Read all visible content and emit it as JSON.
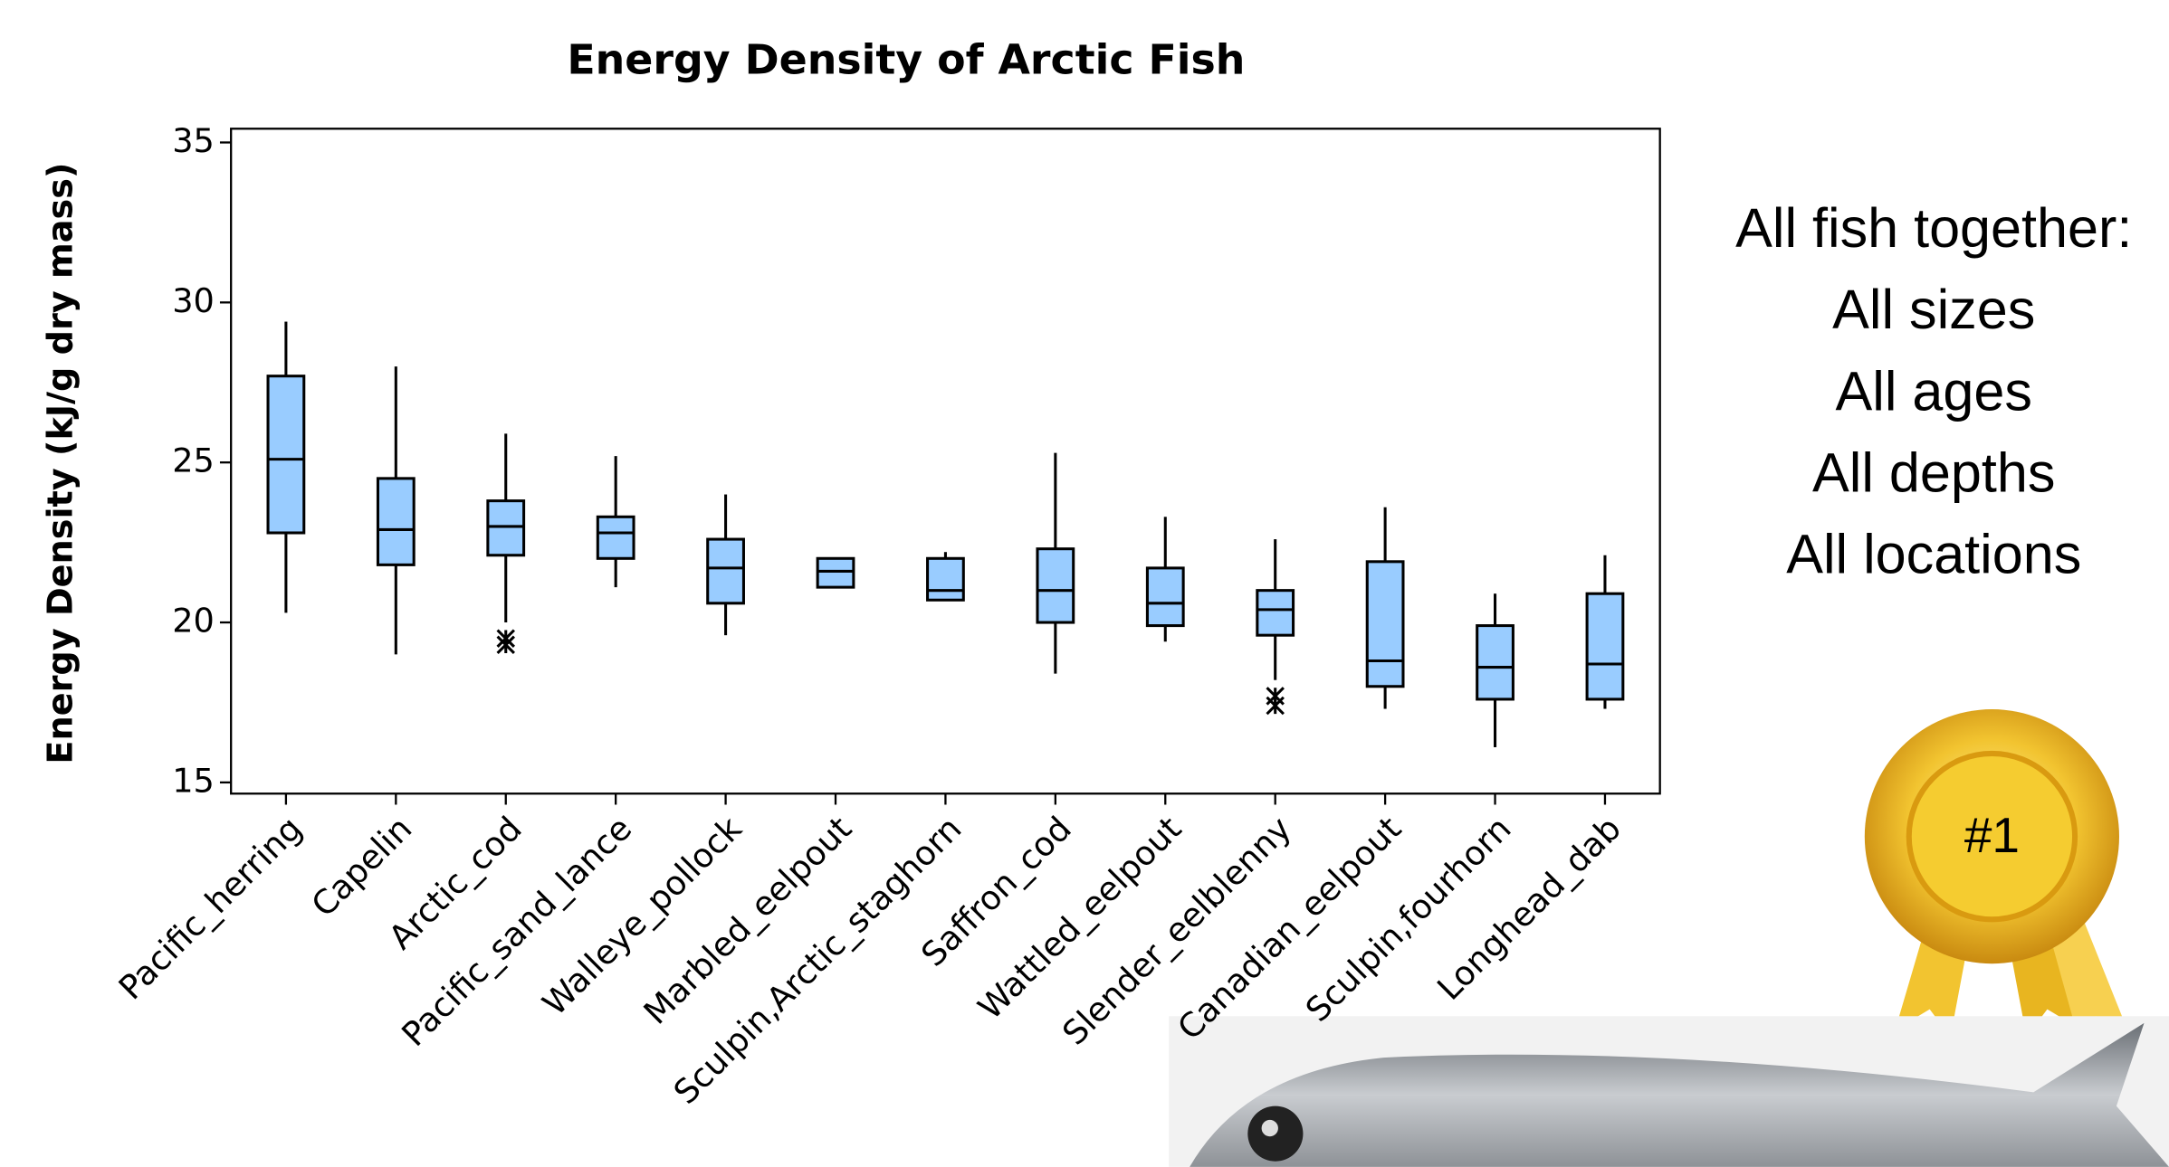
{
  "chart_data": {
    "type": "box",
    "title": "Energy Density of Arctic Fish",
    "y_label": "Energy Density (kJ/g dry mass)",
    "categories": [
      "Pacific_herring",
      "Capelin",
      "Arctic_cod",
      "Pacific_sand_lance",
      "Walleye_pollock",
      "Marbled_eelpout",
      "Sculpin,Arctic_staghorn",
      "Saffron_cod",
      "Wattled_eelpout",
      "Slender_eelblenny",
      "Canadian_eelpout",
      "Sculpin,fourhorn",
      "Longhead_dab"
    ],
    "boxes": [
      {
        "whislo": 20.3,
        "q1": 22.8,
        "med": 25.1,
        "q3": 27.7,
        "whishi": 29.4,
        "fliers": []
      },
      {
        "whislo": 19.0,
        "q1": 21.8,
        "med": 22.9,
        "q3": 24.5,
        "whishi": 28.0,
        "fliers": []
      },
      {
        "whislo": 20.0,
        "q1": 22.1,
        "med": 23.0,
        "q3": 23.8,
        "whishi": 25.9,
        "fliers": [
          19.5,
          19.3
        ]
      },
      {
        "whislo": 21.1,
        "q1": 22.0,
        "med": 22.8,
        "q3": 23.3,
        "whishi": 25.2,
        "fliers": []
      },
      {
        "whislo": 19.6,
        "q1": 20.6,
        "med": 21.7,
        "q3": 22.6,
        "whishi": 24.0,
        "fliers": []
      },
      {
        "whislo": 21.1,
        "q1": 21.1,
        "med": 21.6,
        "q3": 22.0,
        "whishi": 22.0,
        "fliers": []
      },
      {
        "whislo": 20.7,
        "q1": 20.7,
        "med": 21.0,
        "q3": 22.0,
        "whishi": 22.2,
        "fliers": []
      },
      {
        "whislo": 18.4,
        "q1": 20.0,
        "med": 21.0,
        "q3": 22.3,
        "whishi": 25.3,
        "fliers": []
      },
      {
        "whislo": 19.4,
        "q1": 19.9,
        "med": 20.6,
        "q3": 21.7,
        "whishi": 23.3,
        "fliers": []
      },
      {
        "whislo": 18.2,
        "q1": 19.6,
        "med": 20.4,
        "q3": 21.0,
        "whishi": 22.6,
        "fliers": [
          17.7,
          17.4
        ]
      },
      {
        "whislo": 17.3,
        "q1": 18.0,
        "med": 18.8,
        "q3": 21.9,
        "whishi": 23.6,
        "fliers": []
      },
      {
        "whislo": 16.1,
        "q1": 17.6,
        "med": 18.6,
        "q3": 19.9,
        "whishi": 20.9,
        "fliers": []
      },
      {
        "whislo": 17.3,
        "q1": 17.6,
        "med": 18.7,
        "q3": 20.9,
        "whishi": 22.1,
        "fliers": []
      }
    ],
    "color": "#99ccff",
    "ylim": [
      14.65,
      35.43
    ],
    "yticks": [
      15,
      20,
      25,
      30,
      35
    ]
  },
  "panel": {
    "lines": [
      "All fish together:",
      "All sizes",
      "All ages",
      "All depths",
      "All locations"
    ],
    "badge": "#1"
  }
}
